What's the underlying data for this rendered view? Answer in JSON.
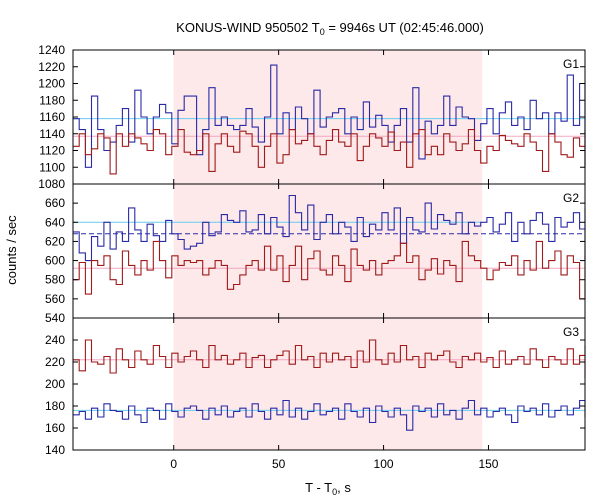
{
  "chart_data": {
    "type": "line",
    "title": "KONUS-WIND 950502 T0 = 9946s UT (02:45:46.000)",
    "title_main": "KONUS-WIND 950502 T",
    "title_sub": "0",
    "title_tail": " = 9946s UT (02:45:46.000)",
    "xlabel": "T - T0, s",
    "xlabel_main": "T - T",
    "xlabel_sub": "0",
    "xlabel_tail": ", s",
    "ylabel": "counts / sec",
    "xlim": [
      -48,
      196
    ],
    "xticks": [
      "0",
      "50",
      "100",
      "150"
    ],
    "xtick_values": [
      0,
      50,
      100,
      150
    ],
    "shaded_interval": [
      0,
      147
    ],
    "shade_color": "#fde8ea",
    "colors": {
      "blue": "#2a2aa6",
      "red": "#a01a1a",
      "cyan": "#66ccee",
      "pink": "#f4a6c0"
    },
    "bin_seconds": 2.944,
    "panels": [
      {
        "label": "G1",
        "ylim": [
          1080,
          1240
        ],
        "yticks": [
          "1080",
          "1100",
          "1120",
          "1140",
          "1160",
          "1180",
          "1200",
          "1220",
          "1240"
        ],
        "ytick_values": [
          1080,
          1100,
          1120,
          1140,
          1160,
          1180,
          1200,
          1220,
          1240
        ],
        "series": [
          {
            "color": "blue",
            "values": [
              1158,
              1145,
              1100,
              1185,
              1145,
              1120,
              1130,
              1150,
              1170,
              1130,
              1192,
              1160,
              1140,
              1160,
              1175,
              1165,
              1128,
              1168,
              1185,
              1185,
              1115,
              1145,
              1195,
              1150,
              1160,
              1150,
              1145,
              1150,
              1170,
              1148,
              1130,
              1160,
              1222,
              1140,
              1165,
              1145,
              1172,
              1158,
              1140,
              1192,
              1148,
              1160,
              1165,
              1170,
              1140,
              1160,
              1145,
              1178,
              1148,
              1162,
              1150,
              1130,
              1150,
              1170,
              1130,
              1195,
              1110,
              1155,
              1140,
              1150,
              1185,
              1150,
              1172,
              1160,
              1158,
              1132,
              1152,
              1170,
              1140,
              1165,
              1178,
              1150,
              1160,
              1145,
              1180,
              1158,
              1165,
              1140,
              1165,
              1155,
              1210,
              1150,
              1200,
              1170,
              1145,
              1150,
              1175,
              1150,
              1130,
              1100,
              1150,
              1162,
              1150
            ]
          },
          {
            "color": "red",
            "values": [
              1125,
              1140,
              1115,
              1122,
              1140,
              1135,
              1092,
              1140,
              1125,
              1140,
              1135,
              1128,
              1120,
              1145,
              1140,
              1115,
              1125,
              1145,
              1118,
              1115,
              1120,
              1140,
              1095,
              1128,
              1140,
              1125,
              1118,
              1143,
              1140,
              1125,
              1100,
              1125,
              1140,
              1105,
              1115,
              1145,
              1128,
              1132,
              1140,
              1125,
              1115,
              1132,
              1145,
              1130,
              1125,
              1140,
              1108,
              1125,
              1140,
              1135,
              1125,
              1142,
              1120,
              1130,
              1100,
              1140,
              1145,
              1115,
              1125,
              1115,
              1140,
              1130,
              1120,
              1128,
              1145,
              1120,
              1105,
              1125,
              1120,
              1138,
              1132,
              1128,
              1125,
              1140,
              1130,
              1120,
              1095,
              1140,
              1130,
              1115,
              1112,
              1135,
              1125,
              1100,
              1135,
              1145,
              1135,
              1120,
              1135,
              1140,
              1110,
              1128,
              1120
            ]
          }
        ],
        "refs": [
          {
            "color": "cyan",
            "style": "solid",
            "x0": -48,
            "x1": 196,
            "value": 1158
          },
          {
            "color": "pink",
            "style": "solid",
            "x0": -48,
            "x1": 196,
            "value": 1137
          }
        ]
      },
      {
        "label": "G2",
        "ylim": [
          540,
          680
        ],
        "yticks": [
          "540",
          "560",
          "580",
          "600",
          "620",
          "640",
          "660"
        ],
        "ytick_values": [
          540,
          560,
          580,
          600,
          620,
          640,
          660
        ],
        "series": [
          {
            "color": "blue",
            "values": [
              630,
              608,
              600,
              625,
              615,
              640,
              612,
              630,
              620,
              655,
              632,
              620,
              638,
              626,
              620,
              642,
              628,
              622,
              612,
              615,
              618,
              640,
              626,
              630,
              648,
              642,
              640,
              652,
              630,
              632,
              648,
              628,
              645,
              635,
              625,
              668,
              650,
              632,
              658,
              622,
              640,
              648,
              628,
              640,
              635,
              620,
              645,
              625,
              638,
              632,
              650,
              632,
              655,
              618,
              645,
              632,
              630,
              660,
              633,
              648,
              642,
              638,
              650,
              628,
              640,
              636,
              640,
              645,
              630,
              638,
              650,
              620,
              640,
              628,
              642,
              650,
              638,
              620,
              645,
              635,
              640,
              650,
              633,
              600,
              630,
              615,
              605,
              620,
              625,
              608,
              632,
              650,
              655
            ]
          },
          {
            "color": "red",
            "values": [
              580,
              598,
              565,
              600,
              595,
              605,
              580,
              575,
              610,
              595,
              585,
              600,
              590,
              620,
              600,
              582,
              605,
              595,
              600,
              598,
              600,
              585,
              592,
              600,
              595,
              570,
              575,
              585,
              595,
              600,
              590,
              615,
              590,
              605,
              578,
              595,
              615,
              580,
              602,
              610,
              590,
              585,
              605,
              595,
              578,
              612,
              595,
              590,
              600,
              585,
              597,
              600,
              605,
              618,
              598,
              605,
              580,
              590,
              602,
              586,
              600,
              595,
              578,
              620,
              605,
              600,
              592,
              580,
              590,
              598,
              595,
              605,
              585,
              600,
              590,
              620,
              592,
              600,
              610,
              585,
              605,
              598,
              560,
              600,
              590,
              595,
              588,
              605,
              600,
              575,
              595,
              590,
              600
            ]
          }
        ],
        "refs": [
          {
            "color": "cyan",
            "style": "solid",
            "x0": -48,
            "x1": 147,
            "value": 640
          },
          {
            "color": "blue",
            "style": "dashed",
            "x0": -48,
            "x1": 196,
            "value": 628
          },
          {
            "color": "pink",
            "style": "solid",
            "x0": -48,
            "x1": 196,
            "value": 592
          }
        ]
      },
      {
        "label": "G3",
        "ylim": [
          140,
          260
        ],
        "yticks": [
          "140",
          "160",
          "180",
          "200",
          "220",
          "240"
        ],
        "ytick_values": [
          140,
          160,
          180,
          200,
          220,
          240
        ],
        "series": [
          {
            "color": "red",
            "values": [
              222,
              212,
              240,
              220,
              218,
              225,
              210,
              232,
              222,
              215,
              230,
              222,
              218,
              235,
              225,
              215,
              228,
              220,
              225,
              230,
              222,
              215,
              235,
              222,
              226,
              218,
              222,
              228,
              215,
              224,
              226,
              215,
              222,
              226,
              230,
              218,
              235,
              222,
              225,
              215,
              228,
              220,
              228,
              222,
              225,
              215,
              230,
              220,
              240,
              222,
              218,
              228,
              220,
              235,
              222,
              225,
              215,
              228,
              222,
              226,
              230,
              220,
              215,
              225,
              222,
              228,
              220,
              224,
              215,
              230,
              218,
              222,
              225,
              218,
              232,
              222,
              215,
              225,
              222,
              218,
              232,
              218,
              226,
              222,
              205,
              230,
              225,
              215,
              230,
              220,
              235,
              225,
              230
            ]
          },
          {
            "color": "blue",
            "values": [
              172,
              175,
              168,
              178,
              170,
              182,
              176,
              175,
              168,
              180,
              172,
              165,
              178,
              176,
              168,
              182,
              175,
              170,
              178,
              180,
              176,
              168,
              178,
              172,
              180,
              170,
              175,
              178,
              170,
              182,
              175,
              168,
              178,
              172,
              185,
              170,
              178,
              168,
              175,
              182,
              172,
              175,
              178,
              168,
              182,
              175,
              170,
              178,
              165,
              180,
              175,
              170,
              178,
              172,
              158,
              180,
              175,
              178,
              170,
              182,
              172,
              176,
              168,
              178,
              185,
              172,
              178,
              170,
              175,
              178,
              172,
              165,
              180,
              175,
              178,
              172,
              182,
              170,
              176,
              180,
              172,
              178,
              185,
              175,
              170,
              180,
              172,
              178,
              170,
              175,
              180,
              172,
              176
            ]
          }
        ],
        "refs": [
          {
            "color": "pink",
            "style": "solid",
            "x0": -48,
            "x1": 196,
            "value": 222
          },
          {
            "color": "cyan",
            "style": "solid",
            "x0": -48,
            "x1": 196,
            "value": 176
          }
        ]
      }
    ]
  }
}
